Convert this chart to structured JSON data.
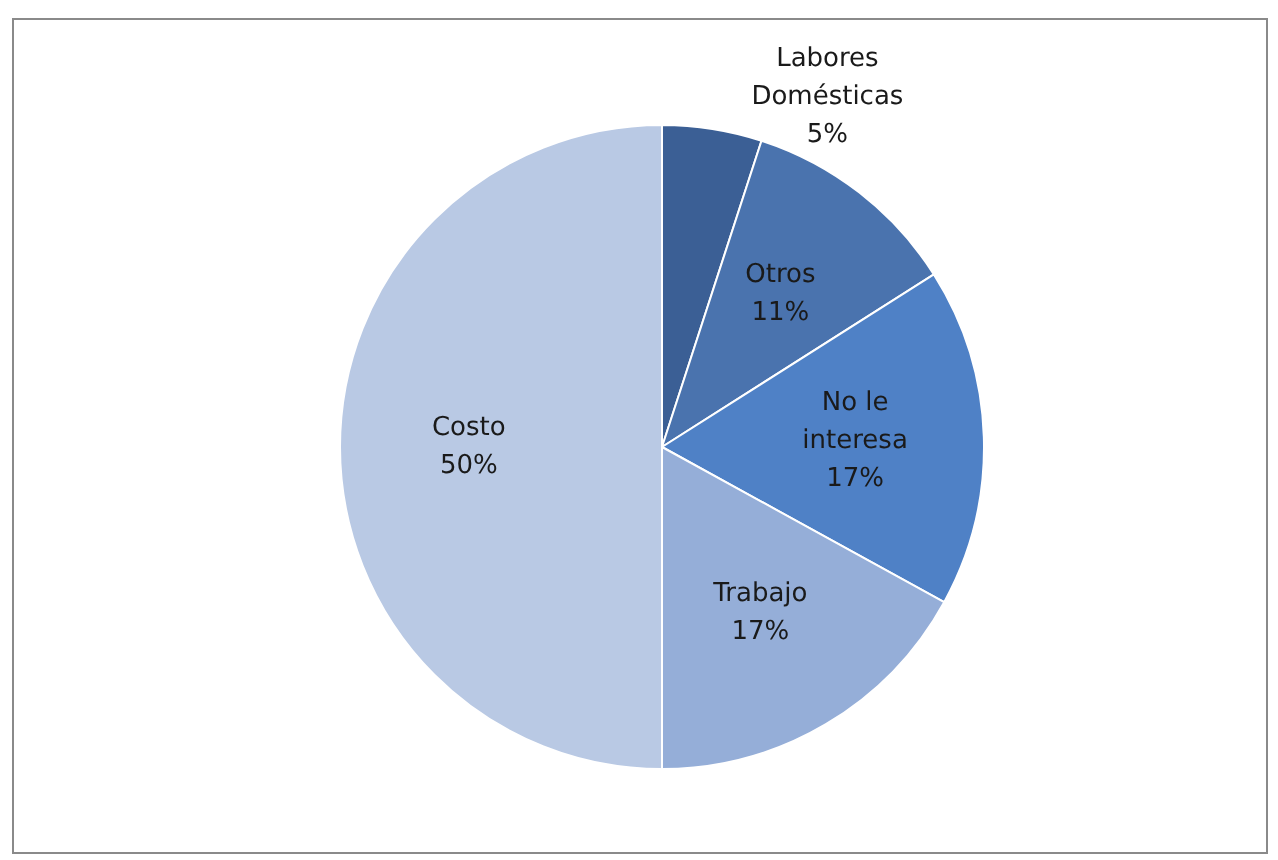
{
  "chart_data": {
    "type": "pie",
    "categories": [
      "Labores Domésticas",
      "Otros",
      "No le interesa",
      "Trabajo",
      "Costo"
    ],
    "values": [
      5,
      11,
      17,
      17,
      50
    ],
    "value_labels": [
      "5%",
      "11%",
      "17%",
      "17%",
      "50%"
    ],
    "colors": [
      "#3b5f95",
      "#4a73ae",
      "#4f81c6",
      "#95aed8",
      "#b9c9e4"
    ],
    "legend": false
  }
}
